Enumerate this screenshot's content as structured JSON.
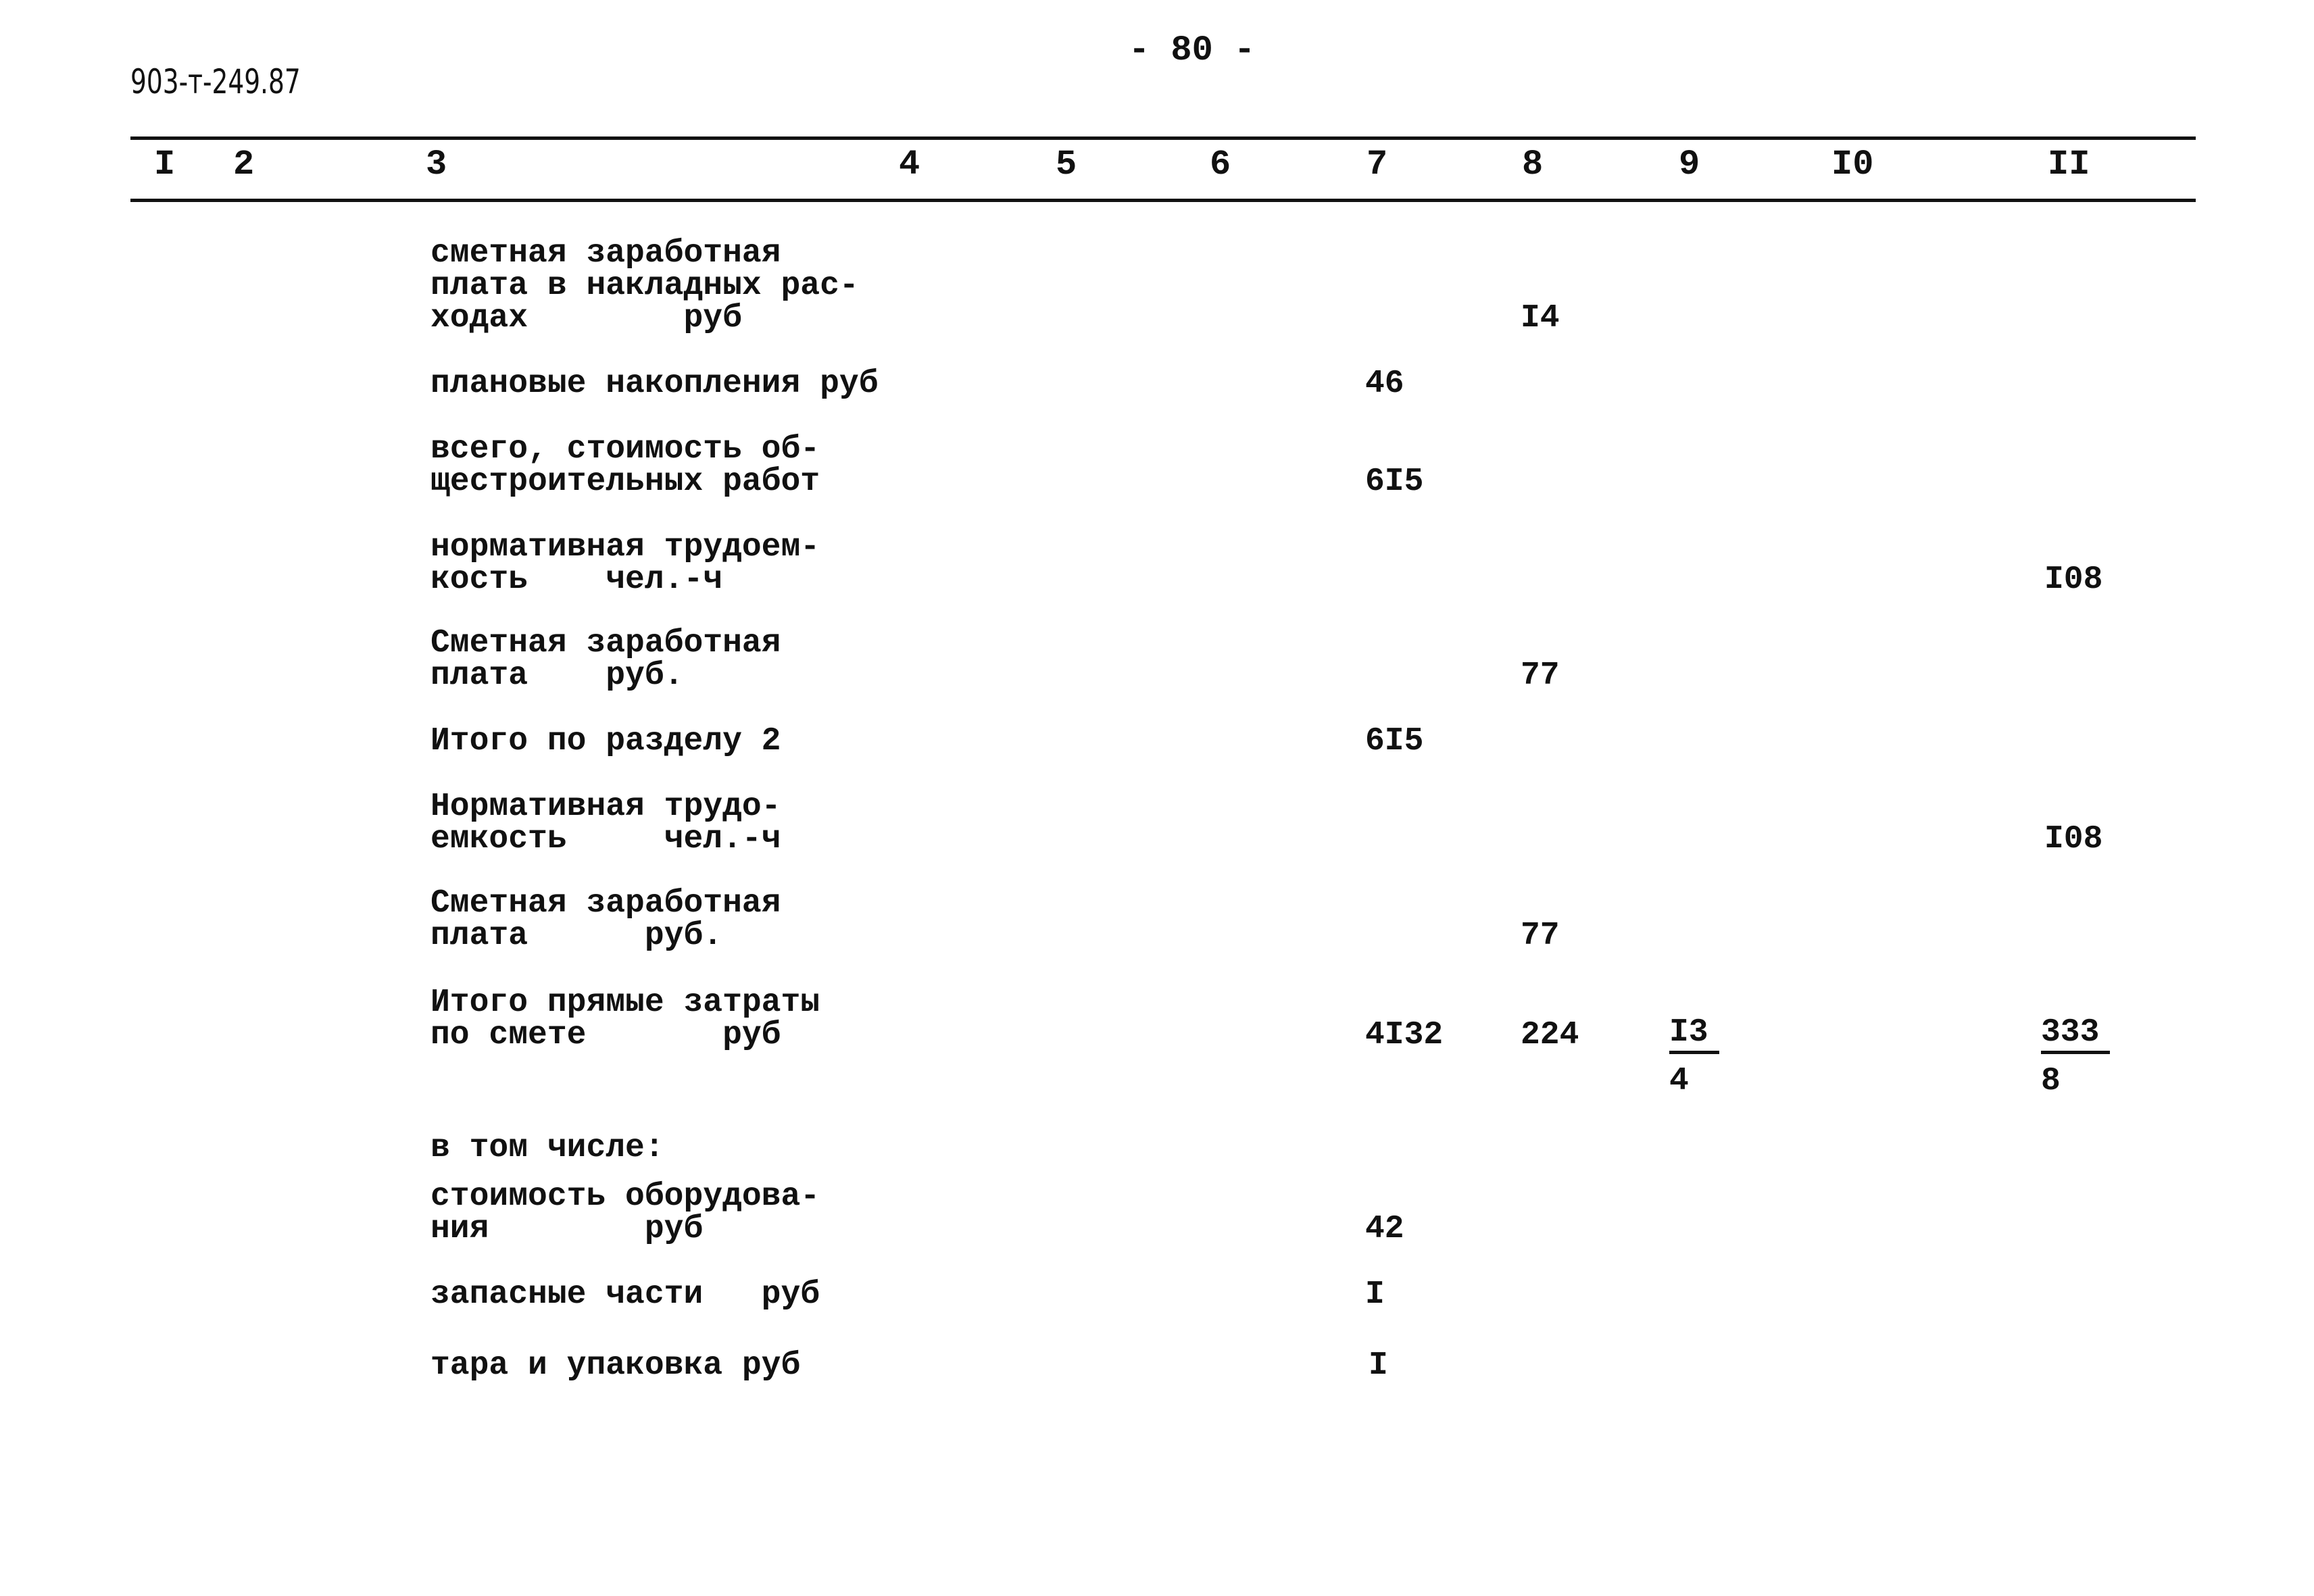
{
  "doc_code": "903-т-249.87",
  "page_number": "- 80 -",
  "columns": [
    "I",
    "2",
    "3",
    "4",
    "5",
    "6",
    "7",
    "8",
    "9",
    "I0",
    "II"
  ],
  "rows": [
    {
      "label": "сметная заработная\nплата в накладных рас-\nходах        руб",
      "c8": "I4"
    },
    {
      "label": "плановые накопления руб",
      "c7": "46"
    },
    {
      "label": "всего, стоимость об-\nщестроительных работ",
      "c7": "6I5"
    },
    {
      "label": "нормативная трудоем-\nкость    чел.-ч",
      "c11": "I08"
    },
    {
      "label": "Сметная заработная\nплата    руб.",
      "c8": "77"
    },
    {
      "label": "Итого по разделу 2",
      "c7": "6I5"
    },
    {
      "label": "Нормативная трудо-\nемкость     чел.-ч",
      "c11": "I08"
    },
    {
      "label": "Сметная заработная\nплата      руб.",
      "c8": "77"
    },
    {
      "label": "Итого прямые затраты\nпо смете       руб",
      "c7": "4I32",
      "c8": "224",
      "c9_num": "I3",
      "c9_den": "4",
      "c11_num": "333",
      "c11_den": "8"
    },
    {
      "label": "в том числе:"
    },
    {
      "label": "стоимость оборудова-\nния        руб",
      "c7": "42"
    },
    {
      "label": "запасные части   руб",
      "c7": "I"
    },
    {
      "label": "тара и упаковка руб",
      "c7": "I"
    }
  ]
}
